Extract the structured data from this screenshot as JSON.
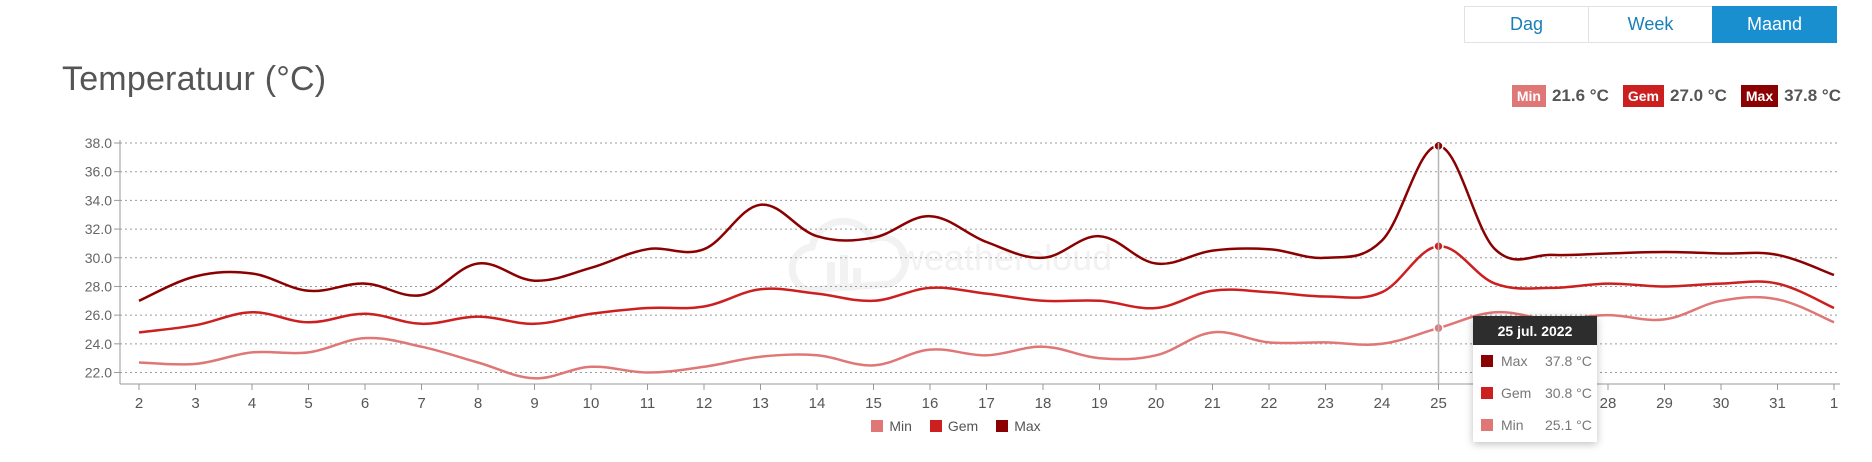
{
  "range_tabs": [
    {
      "label": "Dag",
      "active": false
    },
    {
      "label": "Week",
      "active": false
    },
    {
      "label": "Maand",
      "active": true
    }
  ],
  "summary": [
    {
      "label": "Min",
      "value": "21.6 °C",
      "color": "#e07777"
    },
    {
      "label": "Gem",
      "value": "27.0 °C",
      "color": "#cc1f1f"
    },
    {
      "label": "Max",
      "value": "37.8 °C",
      "color": "#8b0000"
    }
  ],
  "tooltip": {
    "date": "25 jul. 2022",
    "rows": [
      {
        "name": "Max",
        "value": "37.8 °C",
        "color": "#8b0000"
      },
      {
        "name": "Gem",
        "value": "30.8 °C",
        "color": "#cc1f1f"
      },
      {
        "name": "Min",
        "value": "25.1 °C",
        "color": "#e07777"
      }
    ]
  },
  "watermark": "weathercloud",
  "chart_data": {
    "type": "line",
    "title": "Temperatuur (°C)",
    "categories": [
      "2",
      "3",
      "4",
      "5",
      "6",
      "7",
      "8",
      "9",
      "10",
      "11",
      "12",
      "13",
      "14",
      "15",
      "16",
      "17",
      "18",
      "19",
      "20",
      "21",
      "22",
      "23",
      "24",
      "25",
      "26",
      "27",
      "28",
      "29",
      "30",
      "31",
      "1"
    ],
    "series": [
      {
        "name": "Min",
        "color": "#e07777",
        "values": [
          22.7,
          22.6,
          23.4,
          23.4,
          24.4,
          23.8,
          22.7,
          21.6,
          22.4,
          22.0,
          22.4,
          23.1,
          23.2,
          22.5,
          23.6,
          23.2,
          23.8,
          23.0,
          23.2,
          24.8,
          24.1,
          24.1,
          24.0,
          25.1,
          26.2,
          25.7,
          26.0,
          25.7,
          27.0,
          27.1,
          25.5
        ]
      },
      {
        "name": "Gem",
        "color": "#cc1f1f",
        "values": [
          24.8,
          25.3,
          26.2,
          25.5,
          26.1,
          25.4,
          25.9,
          25.4,
          26.1,
          26.5,
          26.6,
          27.8,
          27.5,
          27.0,
          27.9,
          27.5,
          27.0,
          27.0,
          26.5,
          27.7,
          27.6,
          27.3,
          27.6,
          30.8,
          28.2,
          27.9,
          28.2,
          28.0,
          28.2,
          28.2,
          26.5
        ]
      },
      {
        "name": "Max",
        "color": "#8b0000",
        "values": [
          27.0,
          28.7,
          28.9,
          27.7,
          28.2,
          27.4,
          29.6,
          28.4,
          29.3,
          30.6,
          30.6,
          33.7,
          31.5,
          31.4,
          32.9,
          31.1,
          30.0,
          31.5,
          29.6,
          30.5,
          30.6,
          30.0,
          31.2,
          37.8,
          30.6,
          30.2,
          30.3,
          30.4,
          30.3,
          30.2,
          28.8
        ]
      }
    ],
    "y_ticks": [
      "22.0",
      "24.0",
      "26.0",
      "28.0",
      "30.0",
      "32.0",
      "34.0",
      "36.0",
      "38.0"
    ],
    "ylim": [
      21.2,
      38.0
    ],
    "highlight_index": 23,
    "legend": [
      "Min",
      "Gem",
      "Max"
    ],
    "legend_position": "bottom",
    "grid": true
  }
}
